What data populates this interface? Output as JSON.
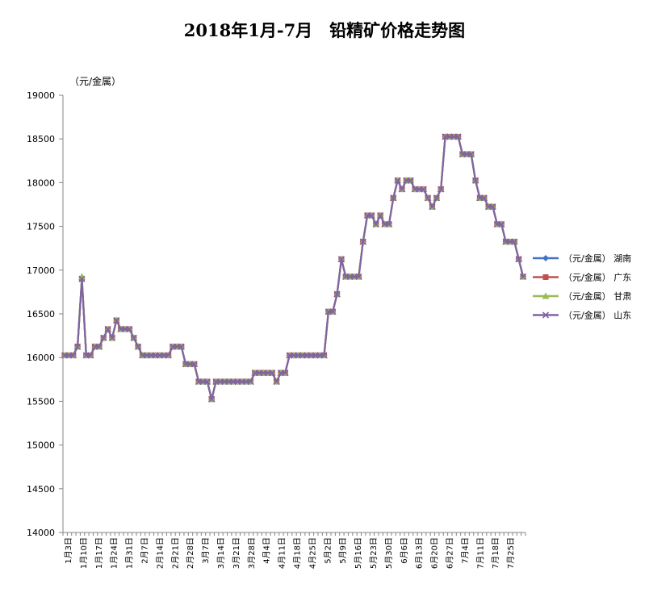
{
  "chart_data": {
    "type": "line",
    "title": "2018年1月-7月　铅精矿价格走势图",
    "ylabel": "（元/金属）",
    "ylim": [
      14000,
      19000
    ],
    "yticks": [
      14000,
      14500,
      15000,
      15500,
      16000,
      16500,
      17000,
      17500,
      18000,
      18500,
      19000
    ],
    "xtick_labels": [
      "1月3日",
      "1月10日",
      "1月17日",
      "1月24日",
      "1月31日",
      "2月7日",
      "2月14日",
      "2月21日",
      "2月28日",
      "3月7日",
      "3月14日",
      "3月21日",
      "3月28日",
      "4月4日",
      "4月11日",
      "4月18日",
      "4月25日",
      "5月2日",
      "5月9日",
      "5月16日",
      "5月23日",
      "5月30日",
      "6月6日",
      "6月13日",
      "6月20日",
      "6月27日",
      "7月4日",
      "7月11日",
      "7月18日",
      "7月25日"
    ],
    "legend_position": "right",
    "grid": false,
    "series": [
      {
        "name": "（元/金属） 湖南",
        "color": "#4472C4",
        "marker": "diamond",
        "values": [
          16025,
          16025,
          16025,
          16125,
          16900,
          16025,
          16025,
          16125,
          16125,
          16225,
          16325,
          16225,
          16425,
          16325,
          16325,
          16325,
          16225,
          16125,
          16025,
          16025,
          16025,
          16025,
          16025,
          16025,
          16025,
          16125,
          16125,
          16125,
          15925,
          15925,
          15925,
          15725,
          15725,
          15725,
          15525,
          15725,
          15725,
          15725,
          15725,
          15725,
          15725,
          15725,
          15725,
          15725,
          15825,
          15825,
          15825,
          15825,
          15825,
          15725,
          15825,
          15825,
          16025,
          16025,
          16025,
          16025,
          16025,
          16025,
          16025,
          16025,
          16025,
          16525,
          16525,
          16725,
          17125,
          16925,
          16925,
          16925,
          16925,
          17325,
          17625,
          17625,
          17525,
          17625,
          17525,
          17525,
          17825,
          18025,
          17925,
          18025,
          18025,
          17925,
          17925,
          17925,
          17825,
          17725,
          17825,
          17925,
          18525,
          18525,
          18525,
          18525,
          18325,
          18325,
          18325,
          18025,
          17825,
          17825,
          17725,
          17725,
          17525,
          17525,
          17325,
          17325,
          17325,
          17125,
          16925
        ]
      },
      {
        "name": "（元/金属） 广东",
        "color": "#C0504D",
        "marker": "square",
        "values": [
          16025,
          16025,
          16025,
          16125,
          16900,
          16025,
          16025,
          16125,
          16125,
          16225,
          16325,
          16225,
          16425,
          16325,
          16325,
          16325,
          16225,
          16125,
          16025,
          16025,
          16025,
          16025,
          16025,
          16025,
          16025,
          16125,
          16125,
          16125,
          15925,
          15925,
          15925,
          15725,
          15725,
          15725,
          15525,
          15725,
          15725,
          15725,
          15725,
          15725,
          15725,
          15725,
          15725,
          15725,
          15825,
          15825,
          15825,
          15825,
          15825,
          15725,
          15825,
          15825,
          16025,
          16025,
          16025,
          16025,
          16025,
          16025,
          16025,
          16025,
          16025,
          16525,
          16525,
          16725,
          17125,
          16925,
          16925,
          16925,
          16925,
          17325,
          17625,
          17625,
          17525,
          17625,
          17525,
          17525,
          17825,
          18025,
          17925,
          18025,
          18025,
          17925,
          17925,
          17925,
          17825,
          17725,
          17825,
          17925,
          18525,
          18525,
          18525,
          18525,
          18325,
          18325,
          18325,
          18025,
          17825,
          17825,
          17725,
          17725,
          17525,
          17525,
          17325,
          17325,
          17325,
          17125,
          16925
        ]
      },
      {
        "name": "（元/金属） 甘肃",
        "color": "#9BBB59",
        "marker": "triangle",
        "values": [
          16025,
          16025,
          16025,
          16125,
          16925,
          16025,
          16025,
          16125,
          16125,
          16225,
          16325,
          16225,
          16425,
          16325,
          16325,
          16325,
          16225,
          16125,
          16025,
          16025,
          16025,
          16025,
          16025,
          16025,
          16025,
          16125,
          16125,
          16125,
          15925,
          15925,
          15925,
          15725,
          15725,
          15725,
          15525,
          15725,
          15725,
          15725,
          15725,
          15725,
          15725,
          15725,
          15725,
          15725,
          15825,
          15825,
          15825,
          15825,
          15825,
          15725,
          15825,
          15825,
          16025,
          16025,
          16025,
          16025,
          16025,
          16025,
          16025,
          16025,
          16025,
          16525,
          16525,
          16725,
          17125,
          16925,
          16925,
          16925,
          16925,
          17325,
          17625,
          17625,
          17525,
          17625,
          17525,
          17525,
          17825,
          18025,
          17925,
          18025,
          18025,
          17925,
          17925,
          17925,
          17825,
          17725,
          17825,
          17925,
          18525,
          18525,
          18525,
          18525,
          18325,
          18325,
          18325,
          18025,
          17825,
          17825,
          17725,
          17725,
          17525,
          17525,
          17325,
          17325,
          17325,
          17125,
          16925
        ]
      },
      {
        "name": "（元/金属） 山东",
        "color": "#8064A2",
        "marker": "x",
        "values": [
          16025,
          16025,
          16025,
          16125,
          16900,
          16025,
          16025,
          16125,
          16125,
          16225,
          16325,
          16225,
          16425,
          16325,
          16325,
          16325,
          16225,
          16125,
          16025,
          16025,
          16025,
          16025,
          16025,
          16025,
          16025,
          16125,
          16125,
          16125,
          15925,
          15925,
          15925,
          15725,
          15725,
          15725,
          15525,
          15725,
          15725,
          15725,
          15725,
          15725,
          15725,
          15725,
          15725,
          15725,
          15825,
          15825,
          15825,
          15825,
          15825,
          15725,
          15825,
          15825,
          16025,
          16025,
          16025,
          16025,
          16025,
          16025,
          16025,
          16025,
          16025,
          16525,
          16525,
          16725,
          17125,
          16925,
          16925,
          16925,
          16925,
          17325,
          17625,
          17625,
          17525,
          17625,
          17525,
          17525,
          17825,
          18025,
          17925,
          18025,
          18025,
          17925,
          17925,
          17925,
          17825,
          17725,
          17825,
          17925,
          18525,
          18525,
          18525,
          18525,
          18325,
          18325,
          18325,
          18025,
          17825,
          17825,
          17725,
          17725,
          17525,
          17525,
          17325,
          17325,
          17325,
          17125,
          16925
        ]
      }
    ]
  }
}
